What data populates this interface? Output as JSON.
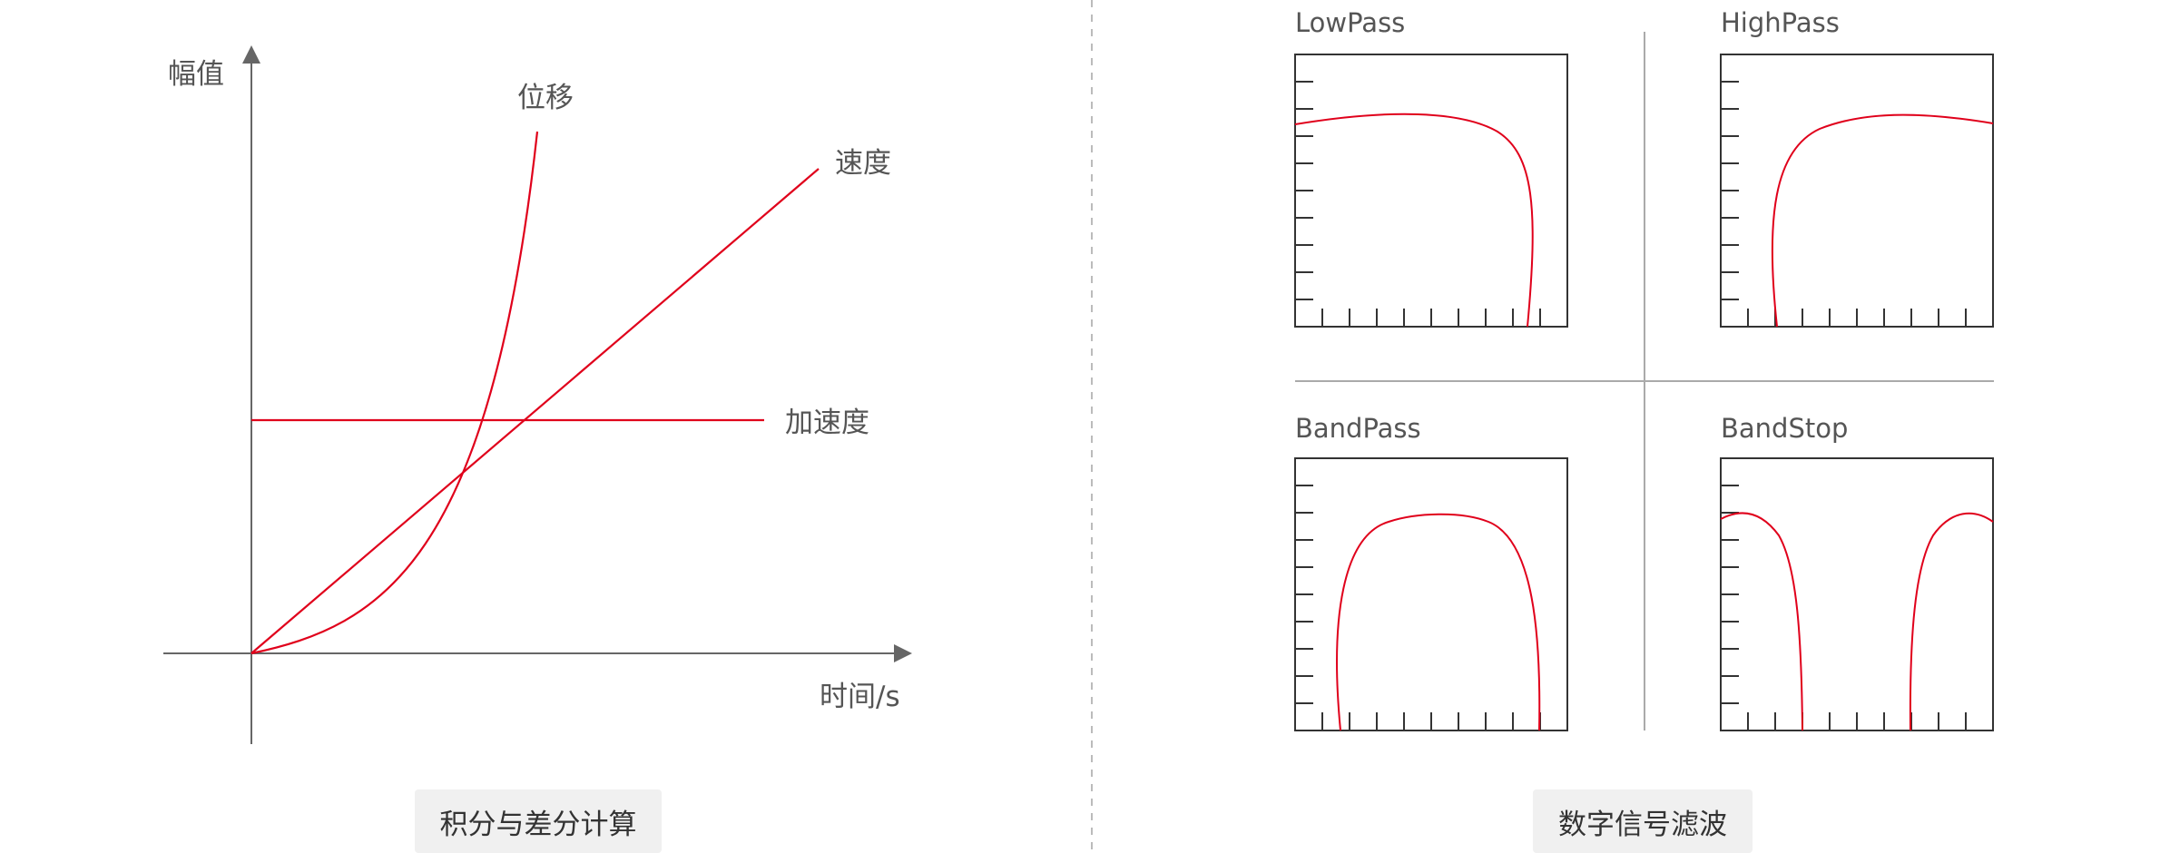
{
  "left_panel": {
    "y_axis_label": "幅值",
    "x_axis_label": "时间/s",
    "curve_labels": {
      "displacement": "位移",
      "velocity": "速度",
      "acceleration": "加速度"
    },
    "caption": "积分与差分计算"
  },
  "right_panel": {
    "filters": [
      {
        "label": "LowPass"
      },
      {
        "label": "HighPass"
      },
      {
        "label": "BandPass"
      },
      {
        "label": "BandStop"
      }
    ],
    "caption": "数字信号滤波"
  },
  "colors": {
    "curve": "#e0001b",
    "axis": "#666666",
    "divider": "#bbbbbb",
    "caption_bg": "#f0f0f0"
  }
}
